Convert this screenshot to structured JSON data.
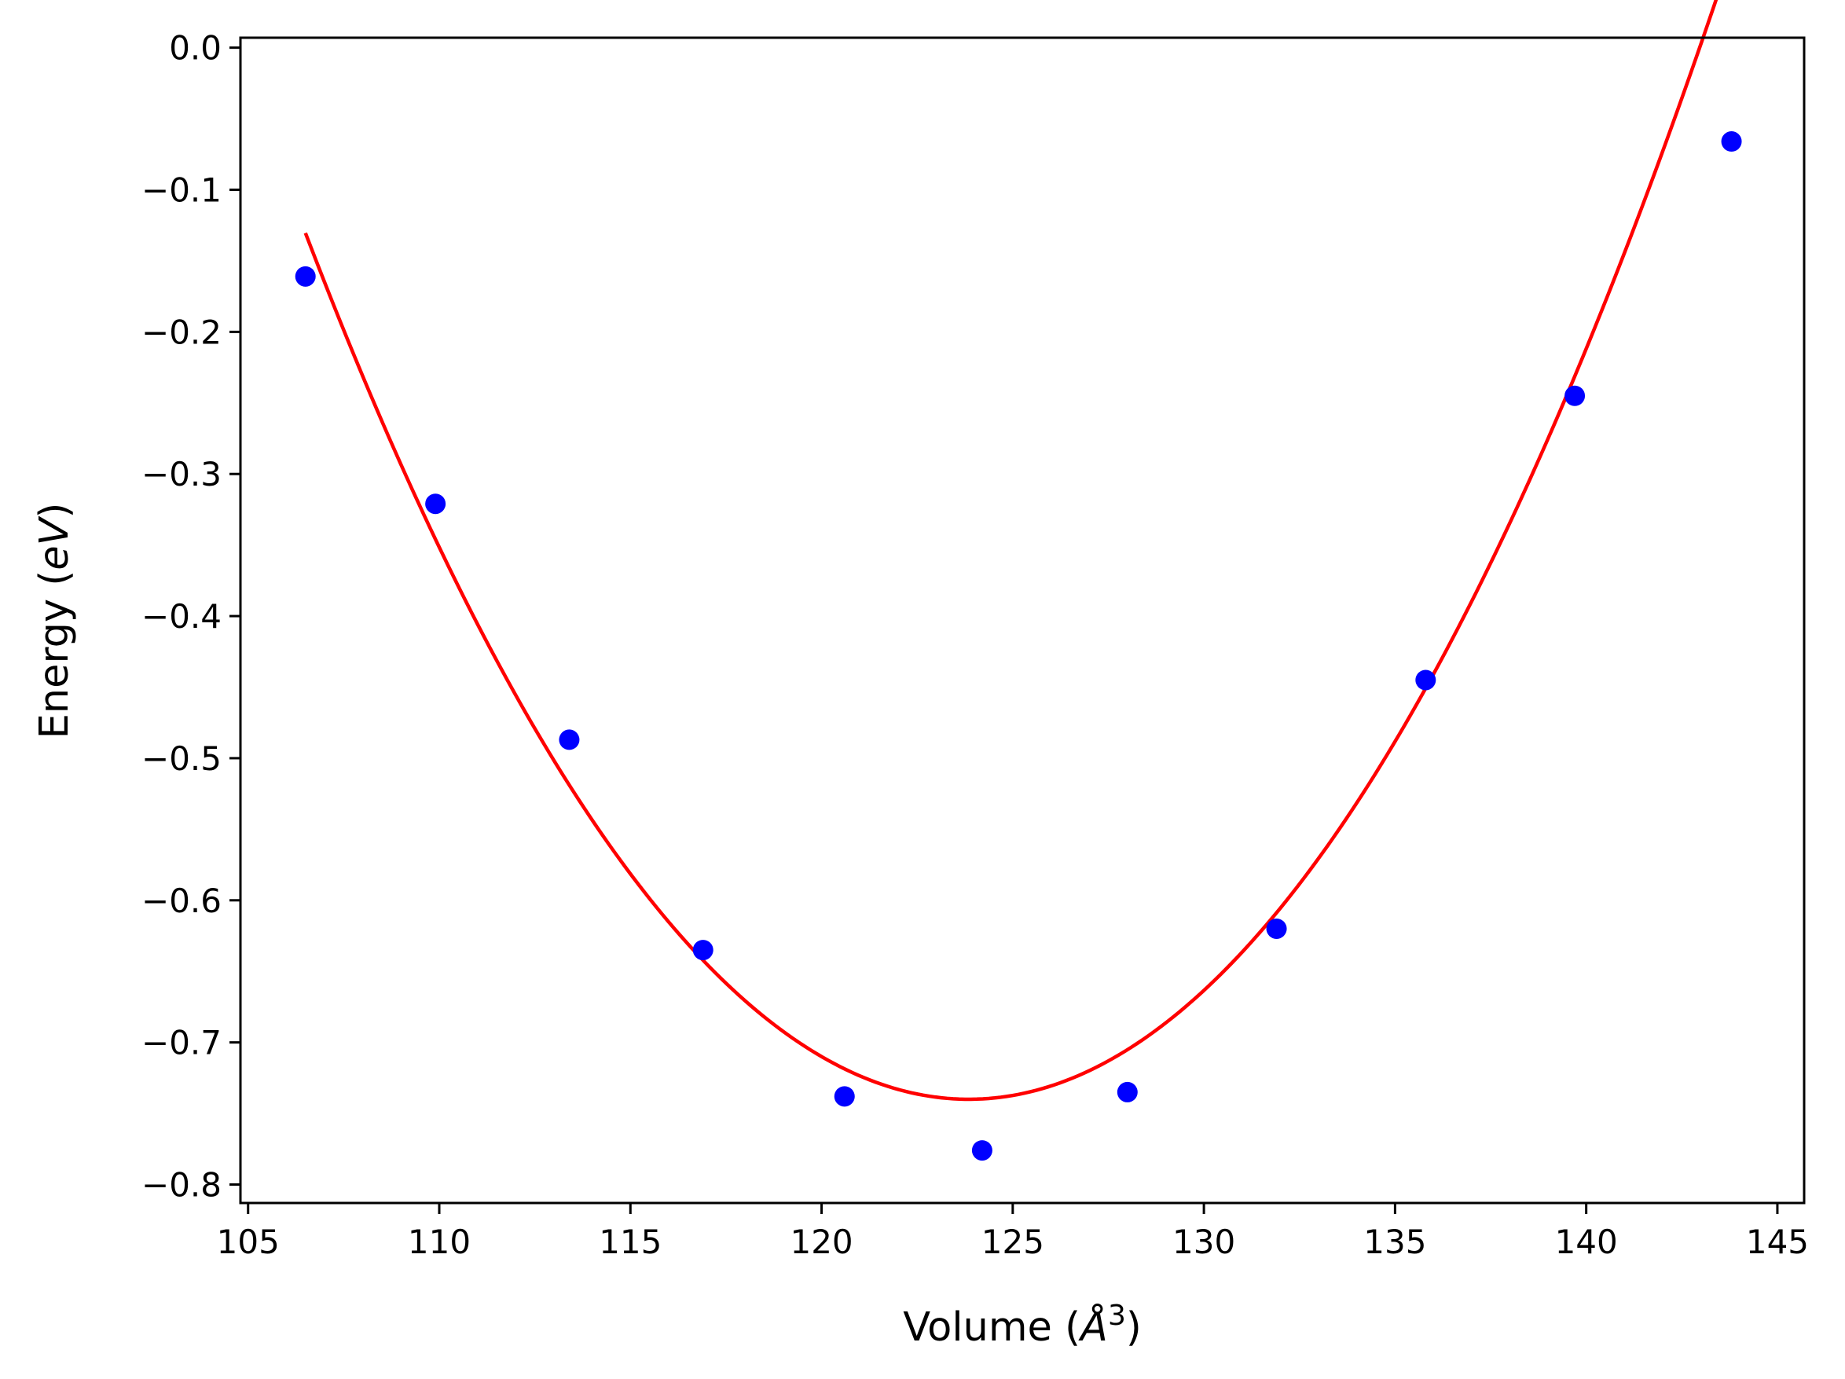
{
  "chart_data": {
    "type": "scatter",
    "title": "",
    "xlabel": "Volume (",
    "xlabel_symbol": "Å",
    "xlabel_sup": "3",
    "xlabel_close": ")",
    "ylabel": "Energy (",
    "ylabel_unit": "eV",
    "ylabel_close": ")",
    "xlim": [
      104.8,
      145.7
    ],
    "ylim": [
      -0.813,
      0.007
    ],
    "x_ticks": [
      105,
      110,
      115,
      120,
      125,
      130,
      135,
      140,
      145
    ],
    "x_tick_labels": [
      "105",
      "110",
      "115",
      "120",
      "125",
      "130",
      "135",
      "140",
      "145"
    ],
    "y_ticks": [
      0.0,
      -0.1,
      -0.2,
      -0.3,
      -0.4,
      -0.5,
      -0.6,
      -0.7,
      -0.8
    ],
    "y_tick_labels": [
      "0.0",
      "−0.1",
      "−0.2",
      "−0.3",
      "−0.4",
      "−0.5",
      "−0.6",
      "−0.7",
      "−0.8"
    ],
    "grid": false,
    "series": [
      {
        "kind": "scatter",
        "color": "#0000ff",
        "x": [
          106.5,
          109.9,
          113.4,
          116.9,
          120.6,
          124.2,
          128.0,
          131.9,
          135.8,
          139.7,
          143.8
        ],
        "y": [
          -0.161,
          -0.321,
          -0.487,
          -0.635,
          -0.738,
          -0.776,
          -0.735,
          -0.62,
          -0.445,
          -0.245,
          -0.066
        ]
      },
      {
        "kind": "line",
        "color": "#ff0000",
        "fit": {
          "model": "quadratic-vertex",
          "x_min": 123.85,
          "y_min": -0.74,
          "curvature": 0.002025,
          "x_range": [
            106.5,
            143.8
          ]
        }
      }
    ]
  }
}
